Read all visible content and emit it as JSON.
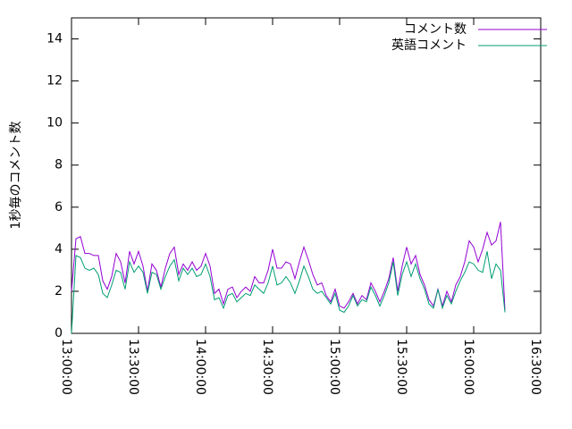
{
  "chart_data": {
    "type": "line",
    "y_label": "1秒毎のコメント数",
    "x": [
      "13:00:00",
      "13:02:00",
      "13:04:00",
      "13:06:00",
      "13:08:00",
      "13:10:00",
      "13:12:00",
      "13:14:00",
      "13:16:00",
      "13:18:00",
      "13:20:00",
      "13:22:00",
      "13:24:00",
      "13:26:00",
      "13:28:00",
      "13:30:00",
      "13:32:00",
      "13:34:00",
      "13:36:00",
      "13:38:00",
      "13:40:00",
      "13:42:00",
      "13:44:00",
      "13:46:00",
      "13:48:00",
      "13:50:00",
      "13:52:00",
      "13:54:00",
      "13:56:00",
      "13:58:00",
      "14:00:00",
      "14:02:00",
      "14:04:00",
      "14:06:00",
      "14:08:00",
      "14:10:00",
      "14:12:00",
      "14:14:00",
      "14:16:00",
      "14:18:00",
      "14:20:00",
      "14:22:00",
      "14:24:00",
      "14:26:00",
      "14:28:00",
      "14:30:00",
      "14:32:00",
      "14:34:00",
      "14:36:00",
      "14:38:00",
      "14:40:00",
      "14:42:00",
      "14:44:00",
      "14:46:00",
      "14:48:00",
      "14:50:00",
      "14:52:00",
      "14:54:00",
      "14:56:00",
      "14:58:00",
      "15:00:00",
      "15:02:00",
      "15:04:00",
      "15:06:00",
      "15:08:00",
      "15:10:00",
      "15:12:00",
      "15:14:00",
      "15:16:00",
      "15:18:00",
      "15:20:00",
      "15:22:00",
      "15:24:00",
      "15:26:00",
      "15:28:00",
      "15:30:00",
      "15:32:00",
      "15:34:00",
      "15:36:00",
      "15:38:00",
      "15:40:00",
      "15:42:00",
      "15:44:00",
      "15:46:00",
      "15:48:00",
      "15:50:00",
      "15:52:00",
      "15:54:00",
      "15:56:00",
      "15:58:00",
      "16:00:00",
      "16:02:00",
      "16:04:00",
      "16:06:00",
      "16:08:00",
      "16:10:00",
      "16:12:00",
      "16:14:00"
    ],
    "series": [
      {
        "name": "コメント数",
        "color": "#9400d3",
        "values": [
          2.0,
          4.5,
          4.6,
          3.8,
          3.8,
          3.7,
          3.7,
          2.5,
          2.1,
          2.7,
          3.8,
          3.4,
          2.4,
          3.9,
          3.3,
          3.9,
          3.2,
          2.0,
          3.3,
          3.0,
          2.2,
          3.1,
          3.8,
          4.1,
          2.8,
          3.3,
          3.0,
          3.4,
          3.0,
          3.2,
          3.8,
          3.2,
          1.9,
          2.1,
          1.4,
          2.1,
          2.2,
          1.7,
          2.0,
          2.2,
          2.0,
          2.7,
          2.4,
          2.4,
          3.0,
          4.0,
          3.1,
          3.1,
          3.4,
          3.3,
          2.6,
          3.4,
          4.1,
          3.5,
          2.8,
          2.3,
          2.4,
          1.8,
          1.5,
          2.1,
          1.3,
          1.2,
          1.5,
          1.9,
          1.4,
          1.8,
          1.6,
          2.4,
          2.0,
          1.5,
          2.0,
          2.6,
          3.6,
          2.0,
          3.2,
          4.1,
          3.3,
          3.7,
          2.8,
          2.3,
          1.6,
          1.3,
          2.1,
          1.3,
          2.0,
          1.5,
          2.3,
          2.7,
          3.4,
          4.4,
          4.1,
          3.4,
          4.0,
          4.8,
          4.2,
          4.4,
          5.3,
          1.1
        ]
      },
      {
        "name": "英語コメント",
        "color": "#009e73",
        "values": [
          0,
          3.7,
          3.6,
          3.1,
          3.0,
          3.1,
          2.8,
          1.9,
          1.7,
          2.3,
          3.0,
          2.9,
          2.1,
          3.4,
          2.9,
          3.2,
          2.9,
          1.9,
          2.9,
          2.8,
          2.1,
          2.7,
          3.2,
          3.5,
          2.5,
          3.1,
          2.8,
          3.1,
          2.7,
          2.8,
          3.3,
          2.7,
          1.6,
          1.7,
          1.2,
          1.8,
          1.9,
          1.5,
          1.7,
          1.9,
          1.8,
          2.3,
          2.1,
          1.9,
          2.4,
          3.2,
          2.3,
          2.4,
          2.7,
          2.4,
          1.9,
          2.5,
          3.2,
          2.7,
          2.1,
          1.9,
          2.0,
          1.7,
          1.4,
          1.9,
          1.1,
          1.0,
          1.3,
          1.8,
          1.3,
          1.6,
          1.5,
          2.2,
          1.8,
          1.3,
          1.8,
          2.4,
          3.4,
          1.8,
          2.8,
          3.4,
          2.7,
          3.3,
          2.6,
          2.1,
          1.4,
          1.2,
          2.1,
          1.2,
          1.8,
          1.4,
          2.0,
          2.5,
          2.9,
          3.4,
          3.3,
          3.0,
          2.9,
          3.9,
          2.6,
          3.3,
          3.0,
          1.0
        ]
      }
    ],
    "xlim": [
      "13:00:00",
      "16:30:00"
    ],
    "xticks": [
      "13:00:00",
      "13:30:00",
      "14:00:00",
      "14:30:00",
      "15:00:00",
      "15:30:00",
      "16:00:00",
      "16:30:00"
    ],
    "ylim": [
      0,
      15
    ],
    "yticks": [
      0,
      2,
      4,
      6,
      8,
      10,
      12,
      14
    ],
    "legend": "top-right"
  }
}
